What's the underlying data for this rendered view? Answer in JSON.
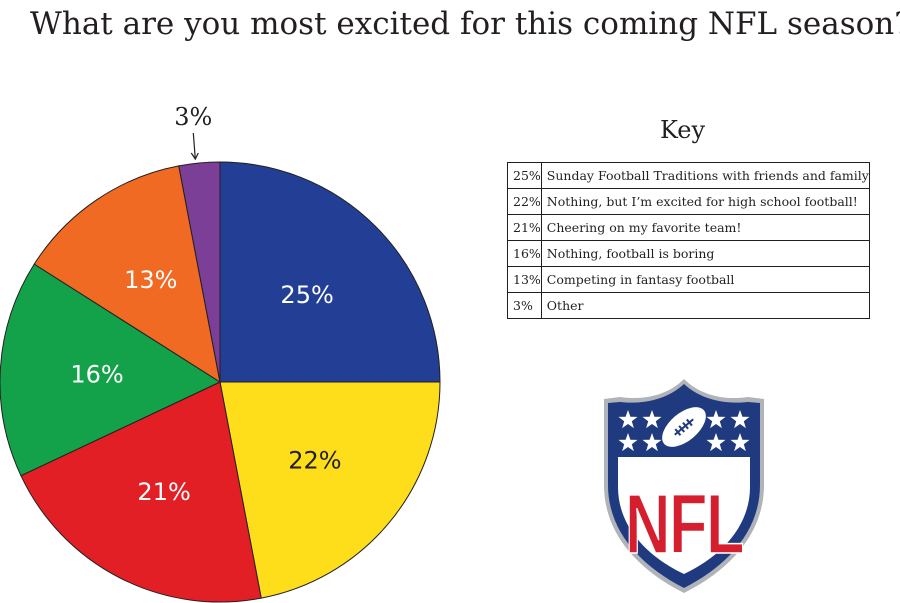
{
  "title": "What are you most excited for this coming NFL season?",
  "key": {
    "title": "Key",
    "rows": [
      {
        "pct": "25%",
        "label": "Sunday Football Traditions with friends and family"
      },
      {
        "pct": "22%",
        "label": "Nothing, but I’m excited for high school football!"
      },
      {
        "pct": "21%",
        "label": "Cheering on my favorite team!"
      },
      {
        "pct": "16%",
        "label": "Nothing, football is boring"
      },
      {
        "pct": "13%",
        "label": "Competing in fantasy football"
      },
      {
        "pct": "3%",
        "label": "Other"
      }
    ]
  },
  "chart_data": {
    "type": "pie",
    "title": "What are you most excited for this coming NFL season?",
    "categories": [
      "Sunday Football Traditions with friends and family",
      "Nothing, but I’m excited for high school football!",
      "Cheering on my favorite team!",
      "Nothing, football is boring",
      "Competing in fantasy football",
      "Other"
    ],
    "values": [
      25,
      22,
      21,
      16,
      13,
      3
    ],
    "labels": [
      "25%",
      "22%",
      "21%",
      "16%",
      "13%",
      "3%"
    ],
    "colors": [
      "#233f95",
      "#fedd1b",
      "#e31f26",
      "#13a24a",
      "#f06a23",
      "#7c3f97"
    ],
    "start": "12 o'clock",
    "direction": "clockwise"
  },
  "logo": {
    "text": "NFL",
    "colors": {
      "navy": "#1f3a7f",
      "red": "#d51f2e",
      "white": "#ffffff"
    }
  }
}
